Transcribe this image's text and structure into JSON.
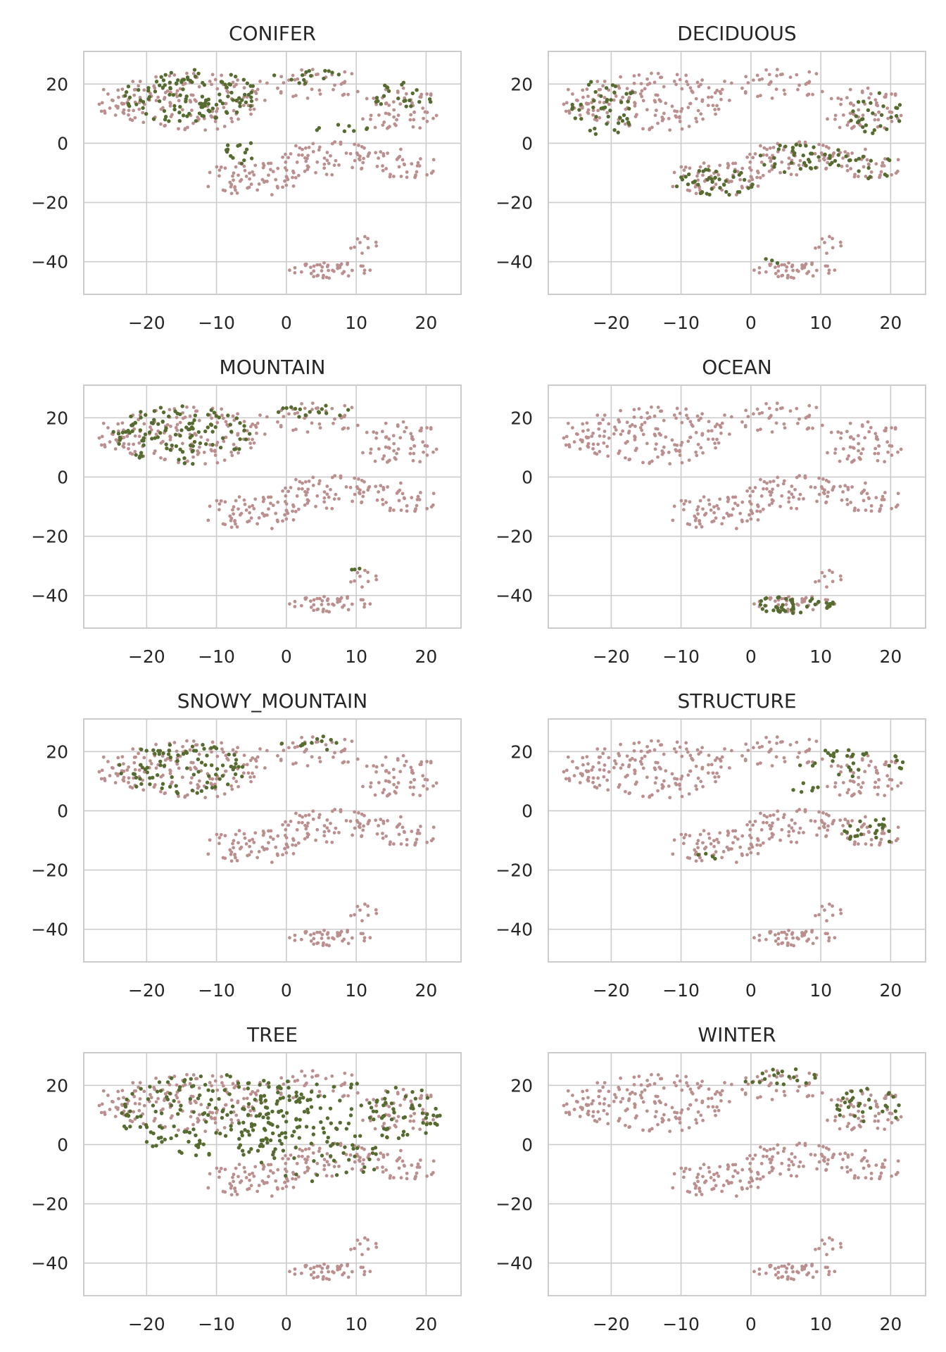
{
  "figure": {
    "colors": {
      "highlight": "#556b2f",
      "background_points": "#bc8f8f",
      "grid": "#cccccc",
      "text": "#262626"
    },
    "xticks": [
      -20,
      -10,
      0,
      10,
      20
    ],
    "yticks": [
      -40,
      -20,
      0,
      20
    ],
    "xlim": [
      -29,
      25
    ],
    "ylim": [
      -51,
      31
    ],
    "grid": true
  },
  "chart_data": [
    {
      "type": "scatter",
      "title": "CONIFER",
      "highlight_regions": [
        {
          "cx": -14,
          "cy": 16,
          "rx": 10,
          "ry": 9,
          "n": 120
        },
        {
          "cx": 3,
          "cy": 23,
          "rx": 5,
          "ry": 3,
          "n": 14
        },
        {
          "cx": 17,
          "cy": 16,
          "rx": 5,
          "ry": 5,
          "n": 22
        },
        {
          "cx": 8,
          "cy": 5,
          "rx": 4,
          "ry": 3,
          "n": 8
        },
        {
          "cx": -7,
          "cy": -3,
          "rx": 3,
          "ry": 4,
          "n": 14
        }
      ]
    },
    {
      "type": "scatter",
      "title": "DECIDUOUS",
      "highlight_regions": [
        {
          "cx": -21,
          "cy": 12,
          "rx": 5,
          "ry": 10,
          "n": 45
        },
        {
          "cx": -5,
          "cy": -13,
          "rx": 6,
          "ry": 5,
          "n": 40
        },
        {
          "cx": 7,
          "cy": -5,
          "rx": 7,
          "ry": 5,
          "n": 40
        },
        {
          "cx": 18,
          "cy": 10,
          "rx": 4,
          "ry": 7,
          "n": 28
        },
        {
          "cx": 17,
          "cy": -8,
          "rx": 4,
          "ry": 4,
          "n": 14
        },
        {
          "cx": 2,
          "cy": -40,
          "rx": 2,
          "ry": 1,
          "n": 3
        }
      ]
    },
    {
      "type": "scatter",
      "title": "MOUNTAIN",
      "highlight_regions": [
        {
          "cx": -15,
          "cy": 14,
          "rx": 10,
          "ry": 10,
          "n": 110
        },
        {
          "cx": 4,
          "cy": 23,
          "rx": 6,
          "ry": 3,
          "n": 16
        },
        {
          "cx": 10,
          "cy": -31,
          "rx": 1,
          "ry": 1,
          "n": 3
        }
      ]
    },
    {
      "type": "scatter",
      "title": "OCEAN",
      "highlight_regions": [
        {
          "cx": 6,
          "cy": -43,
          "rx": 6,
          "ry": 3,
          "n": 45
        }
      ]
    },
    {
      "type": "scatter",
      "title": "SNOWY_MOUNTAIN",
      "highlight_regions": [
        {
          "cx": -15,
          "cy": 14,
          "rx": 9,
          "ry": 9,
          "n": 85
        },
        {
          "cx": 4,
          "cy": 23,
          "rx": 5,
          "ry": 3,
          "n": 12
        }
      ]
    },
    {
      "type": "scatter",
      "title": "STRUCTURE",
      "highlight_regions": [
        {
          "cx": 14,
          "cy": 16,
          "rx": 8,
          "ry": 5,
          "n": 30
        },
        {
          "cx": 17,
          "cy": -7,
          "rx": 4,
          "ry": 5,
          "n": 22
        },
        {
          "cx": 8,
          "cy": 8,
          "rx": 3,
          "ry": 2,
          "n": 6
        },
        {
          "cx": -7,
          "cy": -16,
          "rx": 3,
          "ry": 2,
          "n": 4
        }
      ]
    },
    {
      "type": "scatter",
      "title": "TREE",
      "highlight_regions": [
        {
          "cx": -10,
          "cy": 10,
          "rx": 14,
          "ry": 14,
          "n": 180
        },
        {
          "cx": 5,
          "cy": 5,
          "rx": 12,
          "ry": 18,
          "n": 120
        },
        {
          "cx": 17,
          "cy": 10,
          "rx": 5,
          "ry": 10,
          "n": 45
        }
      ]
    },
    {
      "type": "scatter",
      "title": "WINTER",
      "highlight_regions": [
        {
          "cx": 4,
          "cy": 23,
          "rx": 6,
          "ry": 3,
          "n": 18
        },
        {
          "cx": 17,
          "cy": 13,
          "rx": 5,
          "ry": 6,
          "n": 30
        }
      ]
    }
  ]
}
